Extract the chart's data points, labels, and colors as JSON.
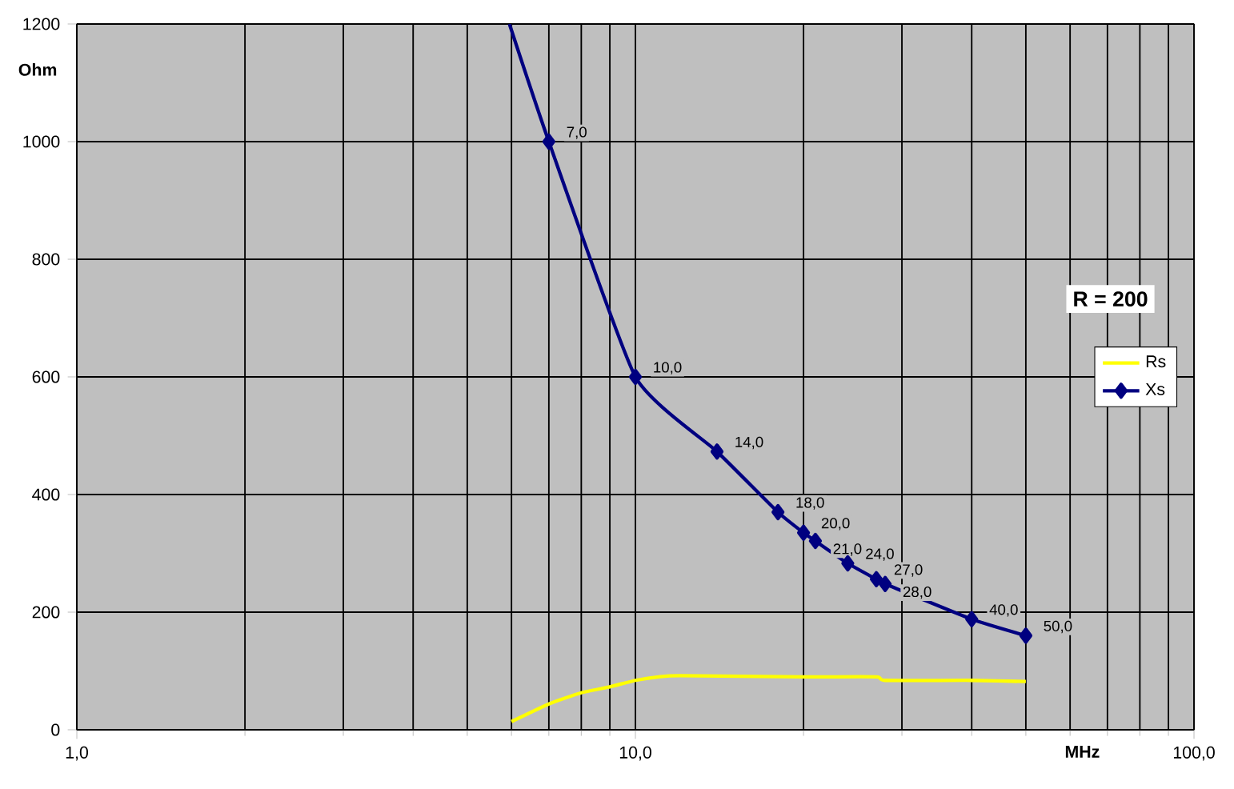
{
  "chart_data": {
    "type": "line",
    "xlabel": "MHz",
    "ylabel": "Ohm",
    "log": "x",
    "xlim": [
      1,
      100
    ],
    "xticks": [
      {
        "value": 1,
        "label": "1,0"
      },
      {
        "value": 10,
        "label": "10,0"
      },
      {
        "value": 100,
        "label": "100,0"
      }
    ],
    "ylim": [
      0,
      1200
    ],
    "yticks": [
      0,
      200,
      400,
      600,
      800,
      1000,
      1200
    ],
    "grid": true,
    "legend": "right",
    "series": [
      {
        "name": "Rs",
        "color": "#ffff00",
        "marker": "none",
        "x": [
          6,
          7,
          8,
          9,
          10,
          11,
          12,
          20,
          27,
          28,
          40,
          50
        ],
        "values": [
          14,
          44,
          63,
          73,
          84,
          90,
          92,
          90,
          90,
          84,
          84,
          82
        ]
      },
      {
        "name": "Xs",
        "color": "#000080",
        "marker": "diamond",
        "x": [
          5.95,
          7,
          10,
          14,
          18,
          20,
          21,
          24,
          27,
          28,
          40,
          50
        ],
        "values": [
          1200,
          1000,
          600,
          473,
          370,
          335,
          321,
          283,
          256,
          248,
          188,
          160
        ]
      }
    ],
    "annotations": [
      "R = 200",
      {
        "text": "7,0",
        "x": 7,
        "y": 1000
      },
      {
        "text": "10,0",
        "x": 10,
        "y": 600
      },
      {
        "text": "14,0",
        "x": 14,
        "y": 473
      },
      {
        "text": "18,0",
        "x": 18,
        "y": 370
      },
      {
        "text": "20,0",
        "x": 20,
        "y": 335
      },
      {
        "text": "21,0",
        "x": 21,
        "y": 321
      },
      {
        "text": "24,0",
        "x": 24,
        "y": 283
      },
      {
        "text": "27,0",
        "x": 27,
        "y": 256
      },
      {
        "text": "28,0",
        "x": 28,
        "y": 248
      },
      {
        "text": "40,0",
        "x": 40,
        "y": 188
      },
      {
        "text": "50,0",
        "x": 50,
        "y": 160
      }
    ]
  }
}
